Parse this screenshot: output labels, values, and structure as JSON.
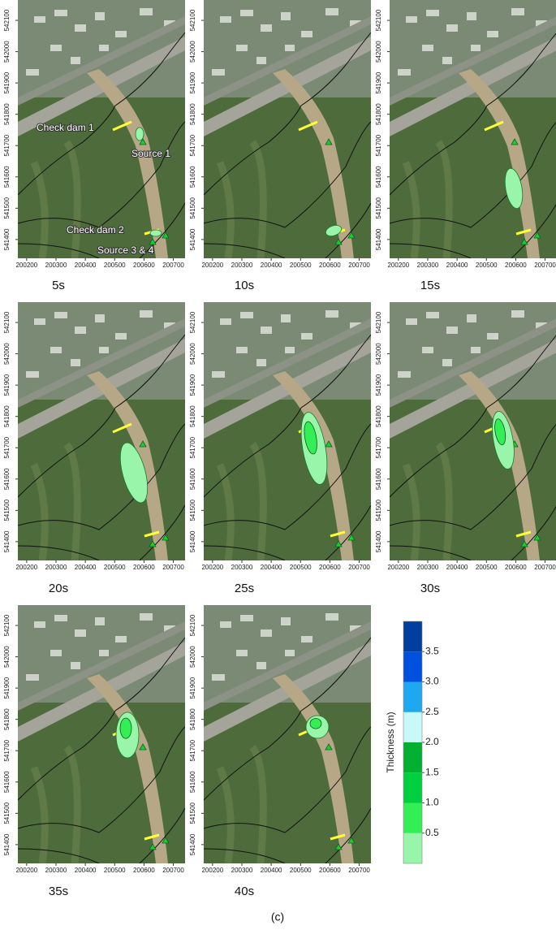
{
  "panels": [
    {
      "label": "5s"
    },
    {
      "label": "10s"
    },
    {
      "label": "15s"
    },
    {
      "label": "20s"
    },
    {
      "label": "25s"
    },
    {
      "label": "30s"
    },
    {
      "label": "35s"
    },
    {
      "label": "40s"
    }
  ],
  "xlim": [
    200170,
    200740
  ],
  "xticks": [
    200200,
    200300,
    200400,
    200500,
    200600,
    200700
  ],
  "ylim": [
    541340,
    542165
  ],
  "yticks": [
    541400,
    541500,
    541600,
    541700,
    541800,
    541900,
    542000,
    542100
  ],
  "annotations": [
    "Check dam 1",
    "Source 1",
    "Check dam 2",
    "Source 3 & 4"
  ],
  "colorbar": {
    "title": "Thickness (m)",
    "lim": [
      0,
      4
    ],
    "ticks": [
      {
        "value": 0.5,
        "label": "0.5"
      },
      {
        "value": 1,
        "label": "1.0"
      },
      {
        "value": 1.5,
        "label": "1.5"
      },
      {
        "value": 2,
        "label": "2.0"
      },
      {
        "value": 2.5,
        "label": "2.5"
      },
      {
        "value": 3,
        "label": "3.0"
      },
      {
        "value": 3.5,
        "label": "3.5"
      }
    ],
    "colors": [
      "#99f5aa",
      "#33ee55",
      "#00d040",
      "#00b030",
      "#c8f8f8",
      "#1fa8f0",
      "#0050e0",
      "#003f9e"
    ]
  },
  "caption": "(c)"
}
